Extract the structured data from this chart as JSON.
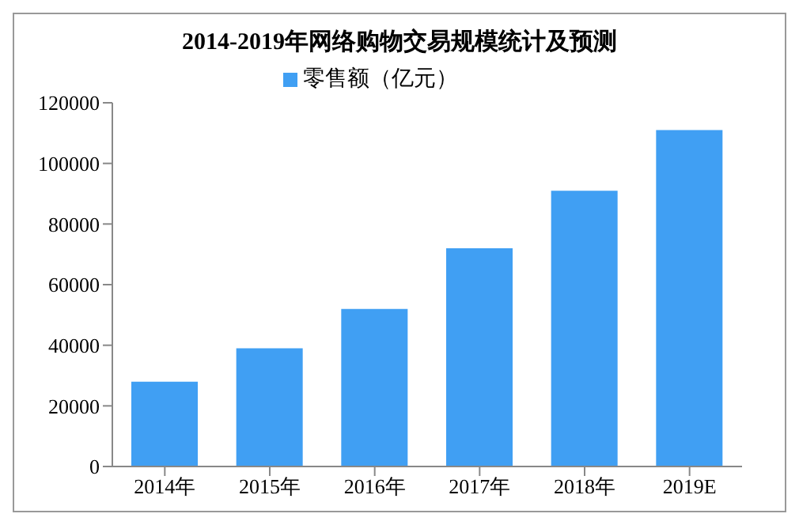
{
  "chart_data": {
    "type": "bar",
    "title": "2014-2019年网络购物交易规模统计及预测",
    "categories": [
      "2014年",
      "2015年",
      "2016年",
      "2017年",
      "2018年",
      "2019E"
    ],
    "series": [
      {
        "name": "零售额（亿元）",
        "color": "#409ff3",
        "values": [
          28000,
          39000,
          52000,
          72000,
          91000,
          111000
        ]
      }
    ],
    "ylim": [
      0,
      120000
    ],
    "yticks": [
      0,
      20000,
      40000,
      60000,
      80000,
      100000,
      120000
    ],
    "grid": false,
    "legend": "top"
  }
}
